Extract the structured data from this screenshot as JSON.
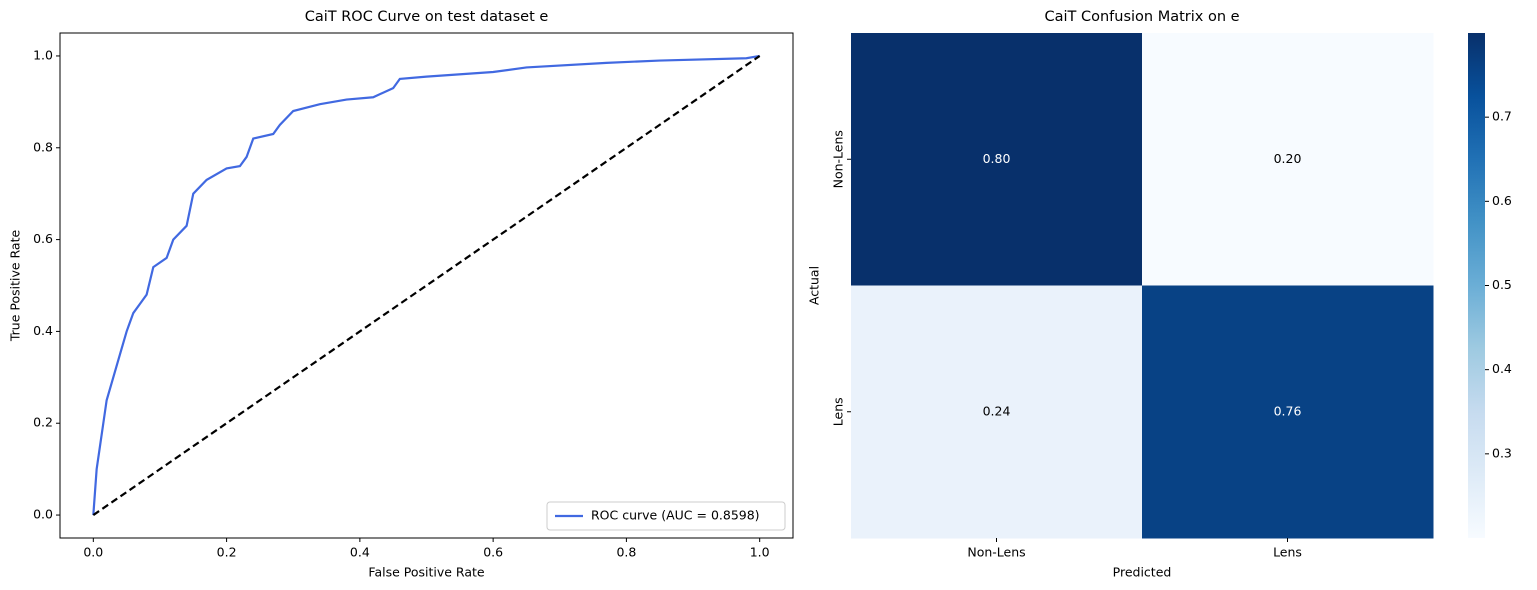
{
  "chart_data": [
    {
      "type": "line",
      "title": "CaiT ROC Curve on test dataset e",
      "xlabel": "False Positive Rate",
      "ylabel": "True Positive Rate",
      "xlim": [
        -0.05,
        1.05
      ],
      "ylim": [
        -0.05,
        1.05
      ],
      "xticks": [
        {
          "value": 0,
          "label": "0.0"
        },
        0.2,
        0.4,
        0.6,
        0.8,
        {
          "value": 1,
          "label": "1.0"
        }
      ],
      "yticks": [
        {
          "value": 0,
          "label": "0.0"
        },
        0.2,
        0.4,
        0.6,
        0.8,
        {
          "value": 1,
          "label": "1.0"
        }
      ],
      "legend": "lower right",
      "series": [
        {
          "name": "ROC curve (AUC = 0.8598)",
          "color": "#4169e1",
          "dash": false,
          "x": [
            0,
            0.003,
            0.005,
            0.01,
            0.015,
            0.02,
            0.03,
            0.04,
            0.05,
            0.06,
            0.07,
            0.08,
            0.09,
            0.11,
            0.12,
            0.14,
            0.15,
            0.17,
            0.2,
            0.22,
            0.23,
            0.24,
            0.27,
            0.28,
            0.3,
            0.34,
            0.38,
            0.42,
            0.45,
            0.46,
            0.5,
            0.6,
            0.65,
            0.77,
            0.85,
            0.98,
            1
          ],
          "y": [
            0,
            0.06,
            0.1,
            0.15,
            0.2,
            0.25,
            0.3,
            0.35,
            0.4,
            0.44,
            0.46,
            0.48,
            0.54,
            0.56,
            0.6,
            0.63,
            0.7,
            0.73,
            0.755,
            0.76,
            0.78,
            0.82,
            0.83,
            0.85,
            0.88,
            0.895,
            0.905,
            0.91,
            0.93,
            0.95,
            0.955,
            0.965,
            0.975,
            0.985,
            0.99,
            0.995,
            1
          ]
        },
        {
          "color": "#000000",
          "dash": true,
          "x": [
            0,
            1
          ],
          "y": [
            0,
            1
          ]
        }
      ]
    },
    {
      "type": "heatmap",
      "title": "CaiT Confusion Matrix on e",
      "xlabel": "Predicted",
      "ylabel": "Actual",
      "x_categories": [
        "Non-Lens",
        "Lens"
      ],
      "y_categories": [
        "Non-Lens",
        "Lens"
      ],
      "values": [
        [
          0.8,
          0.2
        ],
        [
          0.24,
          0.76
        ]
      ],
      "value_labels": [
        [
          "0.80",
          "0.20"
        ],
        [
          "0.24",
          "0.76"
        ]
      ],
      "cmap": "Blues",
      "clim": [
        0.2,
        0.8
      ],
      "cticks": [
        0.3,
        0.4,
        0.5,
        0.6,
        0.7
      ]
    }
  ]
}
